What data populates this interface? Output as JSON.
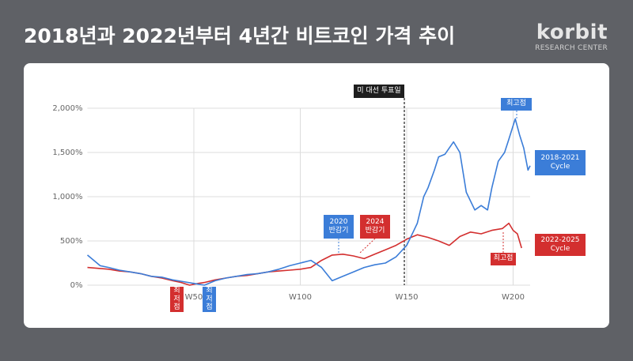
{
  "brand": "korbit",
  "brand_sub": "RESEARCH CENTER",
  "chart_data": {
    "type": "line",
    "title": "2018년과 2022년부터 4년간 비트코인 가격 추이",
    "xlim": [
      0,
      208
    ],
    "xticks": [
      {
        "value": 50,
        "label": "W50"
      },
      {
        "value": 100,
        "label": "W100"
      },
      {
        "value": 150,
        "label": "W150"
      },
      {
        "value": 200,
        "label": "W200"
      }
    ],
    "ylim": [
      0,
      2000
    ],
    "yticks": [
      {
        "value": 0,
        "label": "0%"
      },
      {
        "value": 500,
        "label": "500%"
      },
      {
        "value": 1000,
        "label": "1,000%"
      },
      {
        "value": 1500,
        "label": "1,500%"
      },
      {
        "value": 2000,
        "label": "2,000%"
      }
    ],
    "grid": true,
    "annotations": [
      "미 대선 투표일",
      "2020 반감기",
      "2024 반감기",
      "최고점",
      "최고점",
      "최저점",
      "최저점"
    ],
    "series": [
      {
        "name": "2018-2021 Cycle",
        "color": "#3b7dd8",
        "x": [
          0,
          3,
          6,
          10,
          15,
          20,
          25,
          30,
          35,
          40,
          45,
          50,
          55,
          60,
          65,
          70,
          75,
          80,
          85,
          90,
          95,
          100,
          105,
          110,
          115,
          120,
          125,
          130,
          135,
          140,
          145,
          150,
          153,
          155,
          158,
          160,
          163,
          165,
          168,
          172,
          175,
          178,
          182,
          185,
          188,
          190,
          193,
          196,
          198,
          201,
          203,
          205,
          207,
          208
        ],
        "values": [
          340,
          280,
          220,
          200,
          170,
          150,
          130,
          100,
          90,
          60,
          40,
          20,
          0,
          50,
          80,
          100,
          120,
          130,
          150,
          180,
          220,
          250,
          280,
          200,
          50,
          100,
          150,
          200,
          230,
          250,
          320,
          450,
          600,
          700,
          1000,
          1100,
          1300,
          1450,
          1480,
          1620,
          1500,
          1050,
          850,
          900,
          850,
          1100,
          1400,
          1500,
          1650,
          1880,
          1700,
          1550,
          1300,
          1350
        ]
      },
      {
        "name": "2022-2025 Cycle",
        "color": "#d32f2f",
        "x": [
          0,
          5,
          10,
          15,
          20,
          25,
          30,
          35,
          40,
          44,
          48,
          52,
          55,
          60,
          65,
          70,
          75,
          80,
          85,
          90,
          95,
          100,
          105,
          110,
          115,
          120,
          125,
          130,
          135,
          140,
          145,
          150,
          155,
          160,
          165,
          170,
          175,
          180,
          185,
          190,
          195,
          198,
          200,
          202,
          204
        ],
        "values": [
          200,
          190,
          180,
          160,
          150,
          130,
          100,
          80,
          50,
          30,
          0,
          20,
          30,
          60,
          80,
          100,
          110,
          130,
          150,
          160,
          170,
          180,
          200,
          280,
          340,
          350,
          330,
          300,
          350,
          400,
          450,
          520,
          570,
          540,
          500,
          450,
          550,
          600,
          580,
          620,
          640,
          700,
          620,
          580,
          420
        ]
      }
    ]
  }
}
